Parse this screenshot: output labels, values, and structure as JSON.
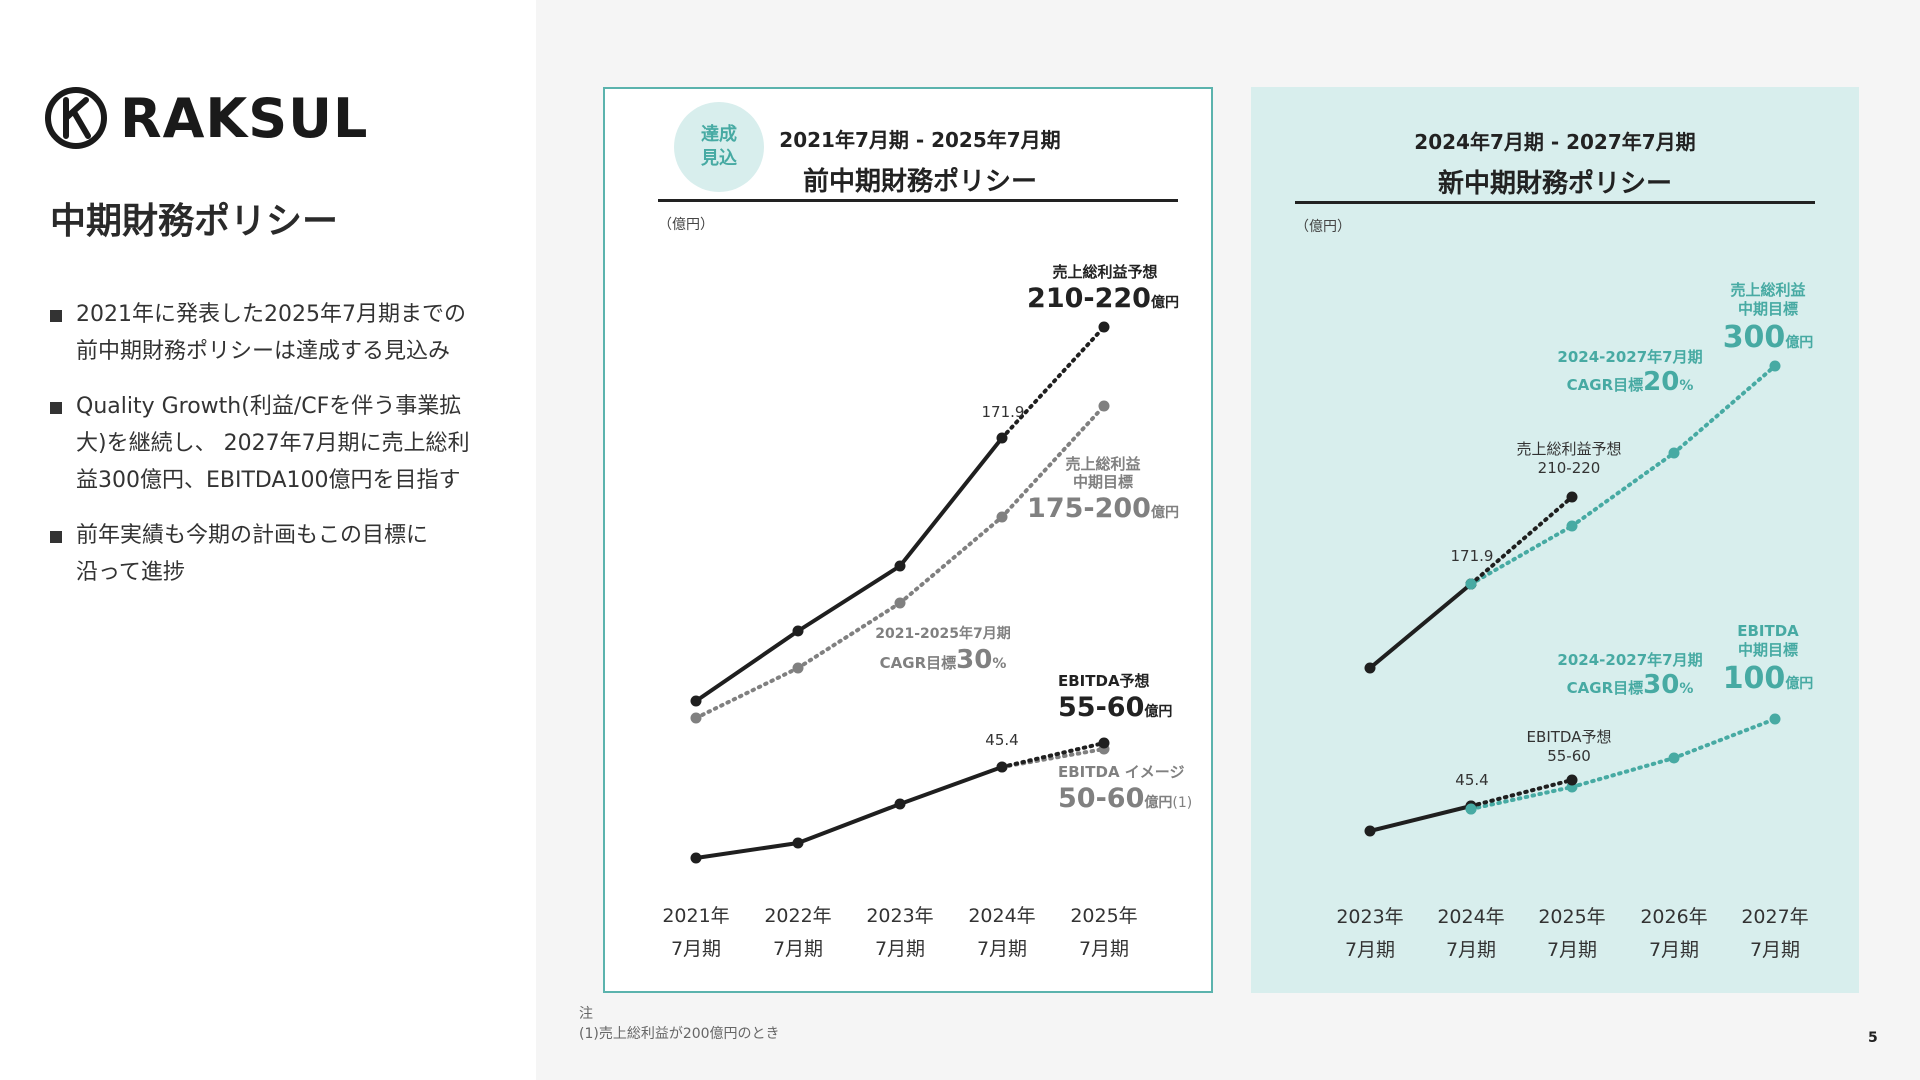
{
  "brand": {
    "name": "RAKSUL",
    "colors": {
      "teal": "#47aaa3",
      "black": "#1f1f1f",
      "gray": "#808080"
    }
  },
  "page_title": "中期財務ポリシー",
  "bullets": [
    {
      "line1": "2021年に発表した2025年7月期までの",
      "line2": "前中期財務ポリシーは達成する見込み"
    },
    {
      "line1": "Quality Growth(利益/CFを伴う事業拡",
      "line2": "大)を継続し、 2027年7月期に売上総利",
      "line3": "益300億円、EBITDA100億円を目指す"
    },
    {
      "line1": "前年実績も今期の計画もこの目標に",
      "line2": "沿って進捗"
    }
  ],
  "panels": {
    "old": {
      "badge_line1": "達成",
      "badge_line2": "見込",
      "period": "2021年7月期 - 2025年7月期",
      "title": "前中期財務ポリシー",
      "unit": "（億円）"
    },
    "new": {
      "period": "2024年7月期 - 2027年7月期",
      "title": "新中期財務ポリシー",
      "unit": "（億円）"
    }
  },
  "note": {
    "label": "注",
    "text": "(1)売上総利益が200億円のとき"
  },
  "page_number": "5",
  "chart_data": [
    {
      "type": "line",
      "x_labels": [
        [
          "2021年",
          "7月期"
        ],
        [
          "2022年",
          "7月期"
        ],
        [
          "2023年",
          "7月期"
        ],
        [
          "2024年",
          "7月期"
        ],
        [
          "2025年",
          "7月期"
        ]
      ],
      "series": [
        {
          "name": "売上総利益",
          "values": [
            93,
            115,
            137,
            171.9,
            215
          ],
          "style": "actual_then_forecast",
          "color": "#1f1f1f"
        },
        {
          "name": "売上総利益 中期目標",
          "values": [
            88,
            108,
            126,
            150,
            188
          ],
          "style": "dotted",
          "color": "#808080"
        },
        {
          "name": "EBITDA",
          "values": [
            18,
            23,
            35,
            45.4,
            55
          ],
          "style": "actual_then_forecast",
          "color": "#1f1f1f"
        },
        {
          "name": "EBITDA イメージ",
          "values": [
            null,
            null,
            null,
            45.4,
            53
          ],
          "style": "dotted",
          "color": "#808080"
        }
      ],
      "annotations": {
        "gp_actual": "171.9",
        "gp_forecast_label": "売上総利益予想",
        "gp_forecast_value": "210-220",
        "gp_target_label1": "売上総利益",
        "gp_target_label2": "中期目標",
        "gp_target_value": "175-200",
        "cagr_period": "2021-2025年7月期",
        "cagr_prefix": "CAGR目標",
        "cagr_value": "30",
        "percent": "%",
        "ebitda_actual": "45.4",
        "ebitda_forecast_label": "EBITDA予想",
        "ebitda_forecast_value": "55-60",
        "ebitda_image_label": "EBITDA イメージ",
        "ebitda_image_value": "50-60",
        "unit_oku": "億円",
        "footnote_mark": "(1)"
      }
    },
    {
      "type": "line",
      "x_labels": [
        [
          "2023年",
          "7月期"
        ],
        [
          "2024年",
          "7月期"
        ],
        [
          "2025年",
          "7月期"
        ],
        [
          "2026年",
          "7月期"
        ],
        [
          "2027年",
          "7月期"
        ]
      ],
      "series": [
        {
          "name": "売上総利益 実績",
          "values": [
            137,
            171.9,
            null,
            null,
            null
          ],
          "style": "solid",
          "color": "#1f1f1f"
        },
        {
          "name": "売上総利益予想",
          "values": [
            null,
            171.9,
            215,
            null,
            null
          ],
          "style": "dotted",
          "color": "#1f1f1f"
        },
        {
          "name": "売上総利益 中期目標",
          "values": [
            null,
            171.9,
            206,
            248,
            300
          ],
          "style": "dotted",
          "color": "#47aaa3"
        },
        {
          "name": "EBITDA 実績",
          "values": [
            35,
            45.4,
            null,
            null,
            null
          ],
          "style": "solid",
          "color": "#1f1f1f"
        },
        {
          "name": "EBITDA予想",
          "values": [
            null,
            45.4,
            55,
            null,
            null
          ],
          "style": "dotted",
          "color": "#1f1f1f"
        },
        {
          "name": "EBITDA 中期目標",
          "values": [
            null,
            45.4,
            59,
            72,
            100
          ],
          "style": "dotted",
          "color": "#47aaa3"
        }
      ],
      "annotations": {
        "gp_target_label1": "売上総利益",
        "gp_target_label2": "中期目標",
        "gp_target_value": "300",
        "gp_cagr_period": "2024-2027年7月期",
        "gp_cagr_prefix": "CAGR目標",
        "gp_cagr_value": "20",
        "gp_forecast_label": "売上総利益予想",
        "gp_forecast_value": "210-220",
        "gp_actual": "171.9",
        "ebitda_target_label1": "EBITDA",
        "ebitda_target_label2": "中期目標",
        "ebitda_target_value": "100",
        "ebitda_cagr_period": "2024-2027年7月期",
        "ebitda_cagr_prefix": "CAGR目標",
        "ebitda_cagr_value": "30",
        "ebitda_forecast_label": "EBITDA予想",
        "ebitda_forecast_value": "55-60",
        "ebitda_actual": "45.4",
        "percent": "%",
        "unit_oku": "億円"
      }
    }
  ]
}
